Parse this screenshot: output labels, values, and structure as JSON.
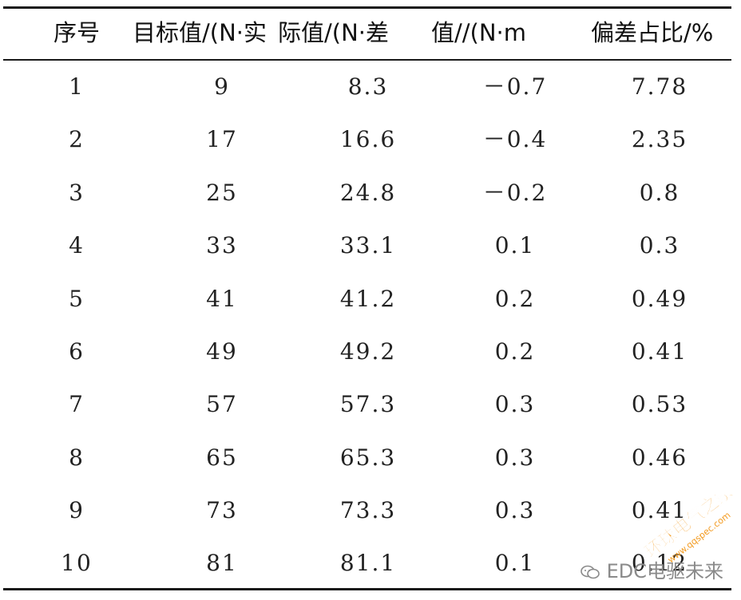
{
  "table": {
    "headers": [
      "序号",
      "目标值/(N·实",
      "际值/(N·差",
      "值//(N·m",
      "偏差占比/%"
    ],
    "rows": [
      [
        "1",
        "9",
        "8.3",
        "－0.7",
        "7.78"
      ],
      [
        "2",
        "17",
        "16.6",
        "－0.4",
        "2.35"
      ],
      [
        "3",
        "25",
        "24.8",
        "－0.2",
        "0.8"
      ],
      [
        "4",
        "33",
        "33.1",
        "0.1",
        "0.3"
      ],
      [
        "5",
        "41",
        "41.2",
        "0.2",
        "0.49"
      ],
      [
        "6",
        "49",
        "49.2",
        "0.2",
        "0.41"
      ],
      [
        "7",
        "57",
        "57.3",
        "0.3",
        "0.53"
      ],
      [
        "8",
        "65",
        "65.3",
        "0.3",
        "0.46"
      ],
      [
        "9",
        "73",
        "73.3",
        "0.3",
        "0.41"
      ],
      [
        "10",
        "81",
        "81.1",
        "0.1",
        "0.12"
      ]
    ]
  },
  "watermark": {
    "wechat_text": "EDC电驱未来",
    "site_name": "环球电气之家",
    "site_url": "www.qqspec.com"
  },
  "colors": {
    "rule": "#1a1a1a",
    "text": "#222222",
    "watermark_orange": "#f39a1e"
  }
}
